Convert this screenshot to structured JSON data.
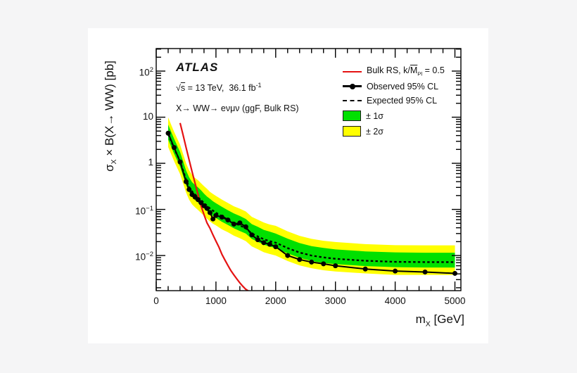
{
  "background": {
    "page": "#f5f5f6",
    "panel": "#ffffff"
  },
  "header": {
    "experiment": "ATLAS",
    "sqrt_sign": "√",
    "sqrt_s": "s",
    "energy_lumi": " = 13 TeV,  36.1 fb",
    "lumi_exp": "-1",
    "channel": "X→ WW→ eνμν (ggF, Bulk RS)"
  },
  "legend": {
    "items": [
      {
        "id": "bulk-rs",
        "pre": "Bulk RS, k/",
        "m": "M",
        "sub": "Pl",
        "post": " = 0.5",
        "color": "#e51212",
        "style": "line"
      },
      {
        "id": "observed",
        "label": "Observed 95% CL",
        "color": "#000000",
        "style": "line-marker"
      },
      {
        "id": "expected",
        "label": "Expected 95% CL",
        "color": "#000000",
        "style": "dashed"
      },
      {
        "id": "band-1sigma",
        "label": "± 1σ",
        "color": "#00e000",
        "style": "box"
      },
      {
        "id": "band-2sigma",
        "label": "± 2σ",
        "color": "#ffff00",
        "style": "box"
      }
    ]
  },
  "axes": {
    "x": {
      "title_pre": "m",
      "title_sub": "X",
      "title_post": " [GeV]",
      "ticks": [
        {
          "v": 0,
          "label": "0"
        },
        {
          "v": 1000,
          "label": "1000"
        },
        {
          "v": 2000,
          "label": "2000"
        },
        {
          "v": 3000,
          "label": "3000"
        },
        {
          "v": 4000,
          "label": "4000"
        },
        {
          "v": 5000,
          "label": "5000"
        }
      ],
      "minor_step": 200,
      "range": [
        0,
        5100
      ]
    },
    "y": {
      "title_pre": "σ",
      "title_sub": "X",
      "title_post": " × B(X→ WW) [pb]",
      "scale": "log",
      "ticks": [
        {
          "v": 100,
          "base": "10",
          "exp": "2"
        },
        {
          "v": 10,
          "base": "10",
          "exp": ""
        },
        {
          "v": 1,
          "base": "1",
          "exp": ""
        },
        {
          "v": 0.1,
          "base": "10",
          "exp": "−1"
        },
        {
          "v": 0.01,
          "base": "10",
          "exp": "−2"
        }
      ],
      "range": [
        0.00173,
        308
      ]
    }
  },
  "chart_data": {
    "type": "line",
    "title": "",
    "xlabel": "m_X [GeV]",
    "ylabel": "sigma_X × B(X→ WW) [pb]",
    "yscale": "log",
    "xlim": [
      0,
      5100
    ],
    "ylim": [
      0.00173,
      308
    ],
    "grid": false,
    "legend_position": "top-right",
    "x_masses_gev": [
      200,
      300,
      400,
      500,
      550,
      600,
      650,
      700,
      750,
      800,
      850,
      900,
      950,
      1000,
      1100,
      1200,
      1300,
      1400,
      1500,
      1600,
      1700,
      1800,
      1900,
      2000,
      2200,
      2400,
      2600,
      2800,
      3000,
      3500,
      4000,
      4500,
      5000
    ],
    "series": [
      {
        "id": "observed",
        "name": "Observed 95% CL",
        "type": "line+markers",
        "color": "#000000",
        "values": [
          4.5,
          2.2,
          1.07,
          0.4,
          0.27,
          0.21,
          0.185,
          0.163,
          0.14,
          0.12,
          0.105,
          0.085,
          0.062,
          0.074,
          0.068,
          0.059,
          0.048,
          0.051,
          0.042,
          0.028,
          0.022,
          0.019,
          0.0175,
          0.0155,
          0.01,
          0.0082,
          0.0072,
          0.0066,
          0.006,
          0.0051,
          0.0046,
          0.0044,
          0.0041
        ]
      },
      {
        "id": "expected",
        "name": "Expected 95% CL",
        "type": "dashed-line",
        "color": "#000000",
        "values": [
          4.3,
          2.1,
          1.1,
          0.44,
          0.31,
          0.245,
          0.21,
          0.185,
          0.16,
          0.138,
          0.12,
          0.105,
          0.094,
          0.085,
          0.071,
          0.06,
          0.051,
          0.045,
          0.039,
          0.03,
          0.026,
          0.0225,
          0.0205,
          0.019,
          0.0145,
          0.0116,
          0.01,
          0.0091,
          0.0085,
          0.0077,
          0.0073,
          0.0072,
          0.0072
        ]
      },
      {
        "id": "green_hi",
        "name": "+1σ band upper edge",
        "type": "band-edge",
        "color": "#00e000",
        "values": [
          6.9,
          3.4,
          1.76,
          0.7,
          0.5,
          0.39,
          0.34,
          0.3,
          0.26,
          0.22,
          0.19,
          0.17,
          0.15,
          0.136,
          0.114,
          0.096,
          0.082,
          0.072,
          0.062,
          0.048,
          0.042,
          0.036,
          0.033,
          0.03,
          0.0232,
          0.0186,
          0.016,
          0.0146,
          0.0136,
          0.0123,
          0.0117,
          0.0115,
          0.0115
        ]
      },
      {
        "id": "green_lo",
        "name": "-1σ band lower edge",
        "type": "band-edge",
        "color": "#00e000",
        "values": [
          3.28,
          1.6,
          0.84,
          0.34,
          0.237,
          0.187,
          0.16,
          0.141,
          0.122,
          0.105,
          0.092,
          0.08,
          0.072,
          0.065,
          0.054,
          0.046,
          0.039,
          0.034,
          0.03,
          0.0229,
          0.0198,
          0.0172,
          0.0156,
          0.0145,
          0.0111,
          0.0089,
          0.0076,
          0.0069,
          0.0065,
          0.0059,
          0.0056,
          0.0055,
          0.0055
        ]
      },
      {
        "id": "yellow_hi",
        "name": "+2σ band upper edge",
        "type": "band-edge",
        "color": "#ffff00",
        "values": [
          9.9,
          4.8,
          2.53,
          1.01,
          0.71,
          0.56,
          0.48,
          0.43,
          0.37,
          0.32,
          0.28,
          0.24,
          0.216,
          0.196,
          0.163,
          0.138,
          0.117,
          0.104,
          0.09,
          0.069,
          0.06,
          0.052,
          0.047,
          0.044,
          0.0334,
          0.0267,
          0.023,
          0.0209,
          0.0196,
          0.0177,
          0.0168,
          0.0166,
          0.0166
        ]
      },
      {
        "id": "yellow_lo",
        "name": "-2σ band lower edge",
        "type": "band-edge",
        "color": "#ffff00",
        "values": [
          2.26,
          1.11,
          0.58,
          0.232,
          0.163,
          0.129,
          0.111,
          0.097,
          0.084,
          0.073,
          0.063,
          0.055,
          0.049,
          0.045,
          0.037,
          0.032,
          0.027,
          0.0237,
          0.0205,
          0.0158,
          0.0137,
          0.0118,
          0.0108,
          0.01,
          0.0076,
          0.0061,
          0.0053,
          0.0048,
          0.0045,
          0.0041,
          0.0038,
          0.0038,
          0.0038
        ]
      },
      {
        "id": "theory",
        "name": "Bulk RS, k/MPl = 0.5",
        "type": "line",
        "color": "#e51212",
        "x": [
          400,
          450,
          500,
          550,
          600,
          650,
          700,
          750,
          800,
          850,
          900,
          950,
          1000,
          1050,
          1100,
          1150,
          1200,
          1250,
          1300,
          1350,
          1400,
          1450,
          1500,
          1560
        ],
        "values": [
          7.5,
          4.1,
          2.2,
          1.2,
          0.66,
          0.37,
          0.21,
          0.12,
          0.077,
          0.051,
          0.039,
          0.028,
          0.0205,
          0.0152,
          0.0106,
          0.008,
          0.0061,
          0.0047,
          0.0038,
          0.0031,
          0.00255,
          0.00215,
          0.00185,
          0.00165
        ]
      }
    ]
  }
}
